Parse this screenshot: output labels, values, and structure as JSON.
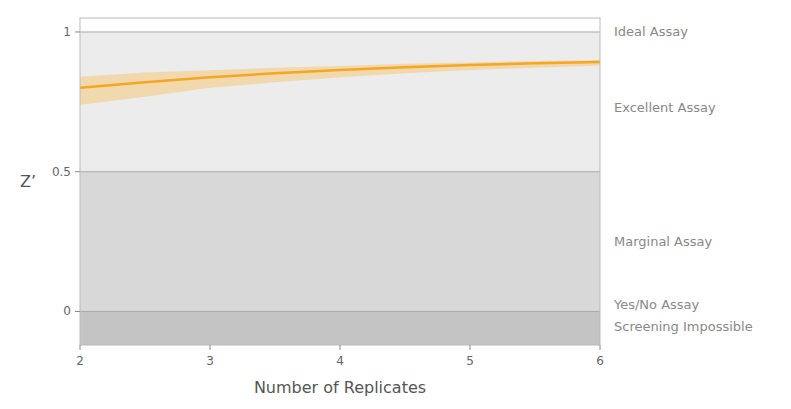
{
  "chart_data": {
    "type": "line",
    "xlabel": "Number of Replicates",
    "ylabel": "Z’",
    "x": [
      2.0,
      2.5,
      3.0,
      3.5,
      4.0,
      4.5,
      5.0,
      5.5,
      6.0
    ],
    "series": [
      {
        "color": "#f5a623",
        "ci_color": "#f5c97a",
        "values": [
          0.8,
          0.82,
          0.838,
          0.852,
          0.864,
          0.874,
          0.882,
          0.888,
          0.893
        ],
        "ci_upper": [
          0.84,
          0.855,
          0.863,
          0.872,
          0.878,
          0.886,
          0.891,
          0.896,
          0.9
        ],
        "ci_lower": [
          0.74,
          0.768,
          0.8,
          0.82,
          0.838,
          0.852,
          0.864,
          0.872,
          0.88
        ]
      }
    ],
    "xlim": [
      2,
      6
    ],
    "ylim": [
      -0.12,
      1.05
    ],
    "xticks": [
      2,
      3,
      4,
      5,
      6
    ],
    "yticks": [
      0,
      0.5,
      1
    ],
    "grid": false,
    "regions": [
      {
        "from": 0.5,
        "to": 1.0,
        "color": "#ececec"
      },
      {
        "from": 0.0,
        "to": 0.5,
        "color": "#d8d8d8"
      },
      {
        "from": -0.12,
        "to": 0.0,
        "color": "#c4c4c4"
      }
    ],
    "hlines": [
      1.0,
      0.5,
      0.0
    ],
    "annotations": [
      {
        "text": "Ideal Assay",
        "y": 1.0
      },
      {
        "text": "Excellent Assay",
        "y": 0.73
      },
      {
        "text": "Marginal Assay",
        "y": 0.25
      },
      {
        "text": "Yes/No Assay",
        "y": 0.025
      },
      {
        "text": "Screening Impossible",
        "y": -0.055
      }
    ]
  }
}
